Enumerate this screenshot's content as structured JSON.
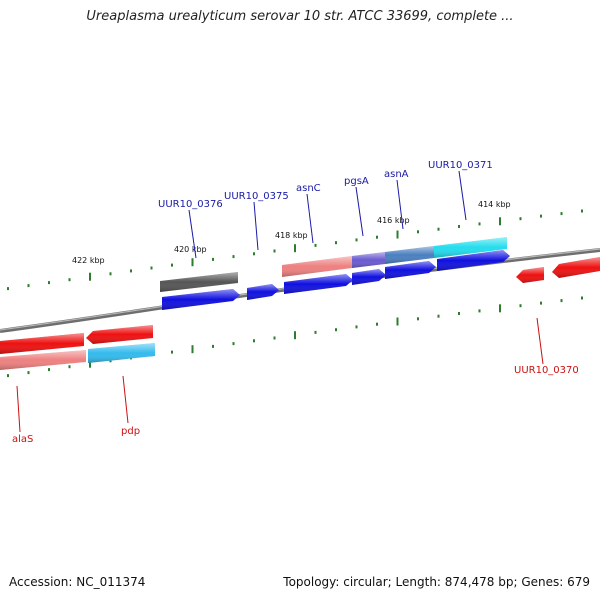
{
  "title": "Ureaplasma urealyticum serovar 10 str. ATCC 33699, complete ...",
  "footer": {
    "accession": "Accession: NC_011374",
    "topology": "Topology: circular; Length: 874,478 bp; Genes: 679"
  },
  "colors": {
    "backbone": "#7a7a7a",
    "tick": "#2e7d2e",
    "forward_label": "#1a1aa8",
    "reverse_label": "#cc1111",
    "gene_blue": "#1010e0",
    "gene_red": "#ee1010",
    "gene_pink": "#ee8080",
    "gene_cyan": "#22ddee",
    "gene_sky": "#33bbee",
    "gene_gray": "#555555",
    "gene_purple": "#6a5ad0",
    "gene_steel": "#4a7fc0"
  },
  "tick_labels": [
    "422 kbp",
    "420 kbp",
    "418 kbp",
    "416 kbp",
    "414 kbp"
  ],
  "gene_labels": [
    {
      "text": "UUR10_0376",
      "strand": "forward"
    },
    {
      "text": "UUR10_0375",
      "strand": "forward"
    },
    {
      "text": "asnC",
      "strand": "forward"
    },
    {
      "text": "pgsA",
      "strand": "forward"
    },
    {
      "text": "asnA",
      "strand": "forward"
    },
    {
      "text": "UUR10_0371",
      "strand": "forward"
    },
    {
      "text": "UUR10_0370",
      "strand": "reverse"
    },
    {
      "text": "alaS",
      "strand": "reverse"
    },
    {
      "text": "pdp",
      "strand": "reverse"
    }
  ]
}
